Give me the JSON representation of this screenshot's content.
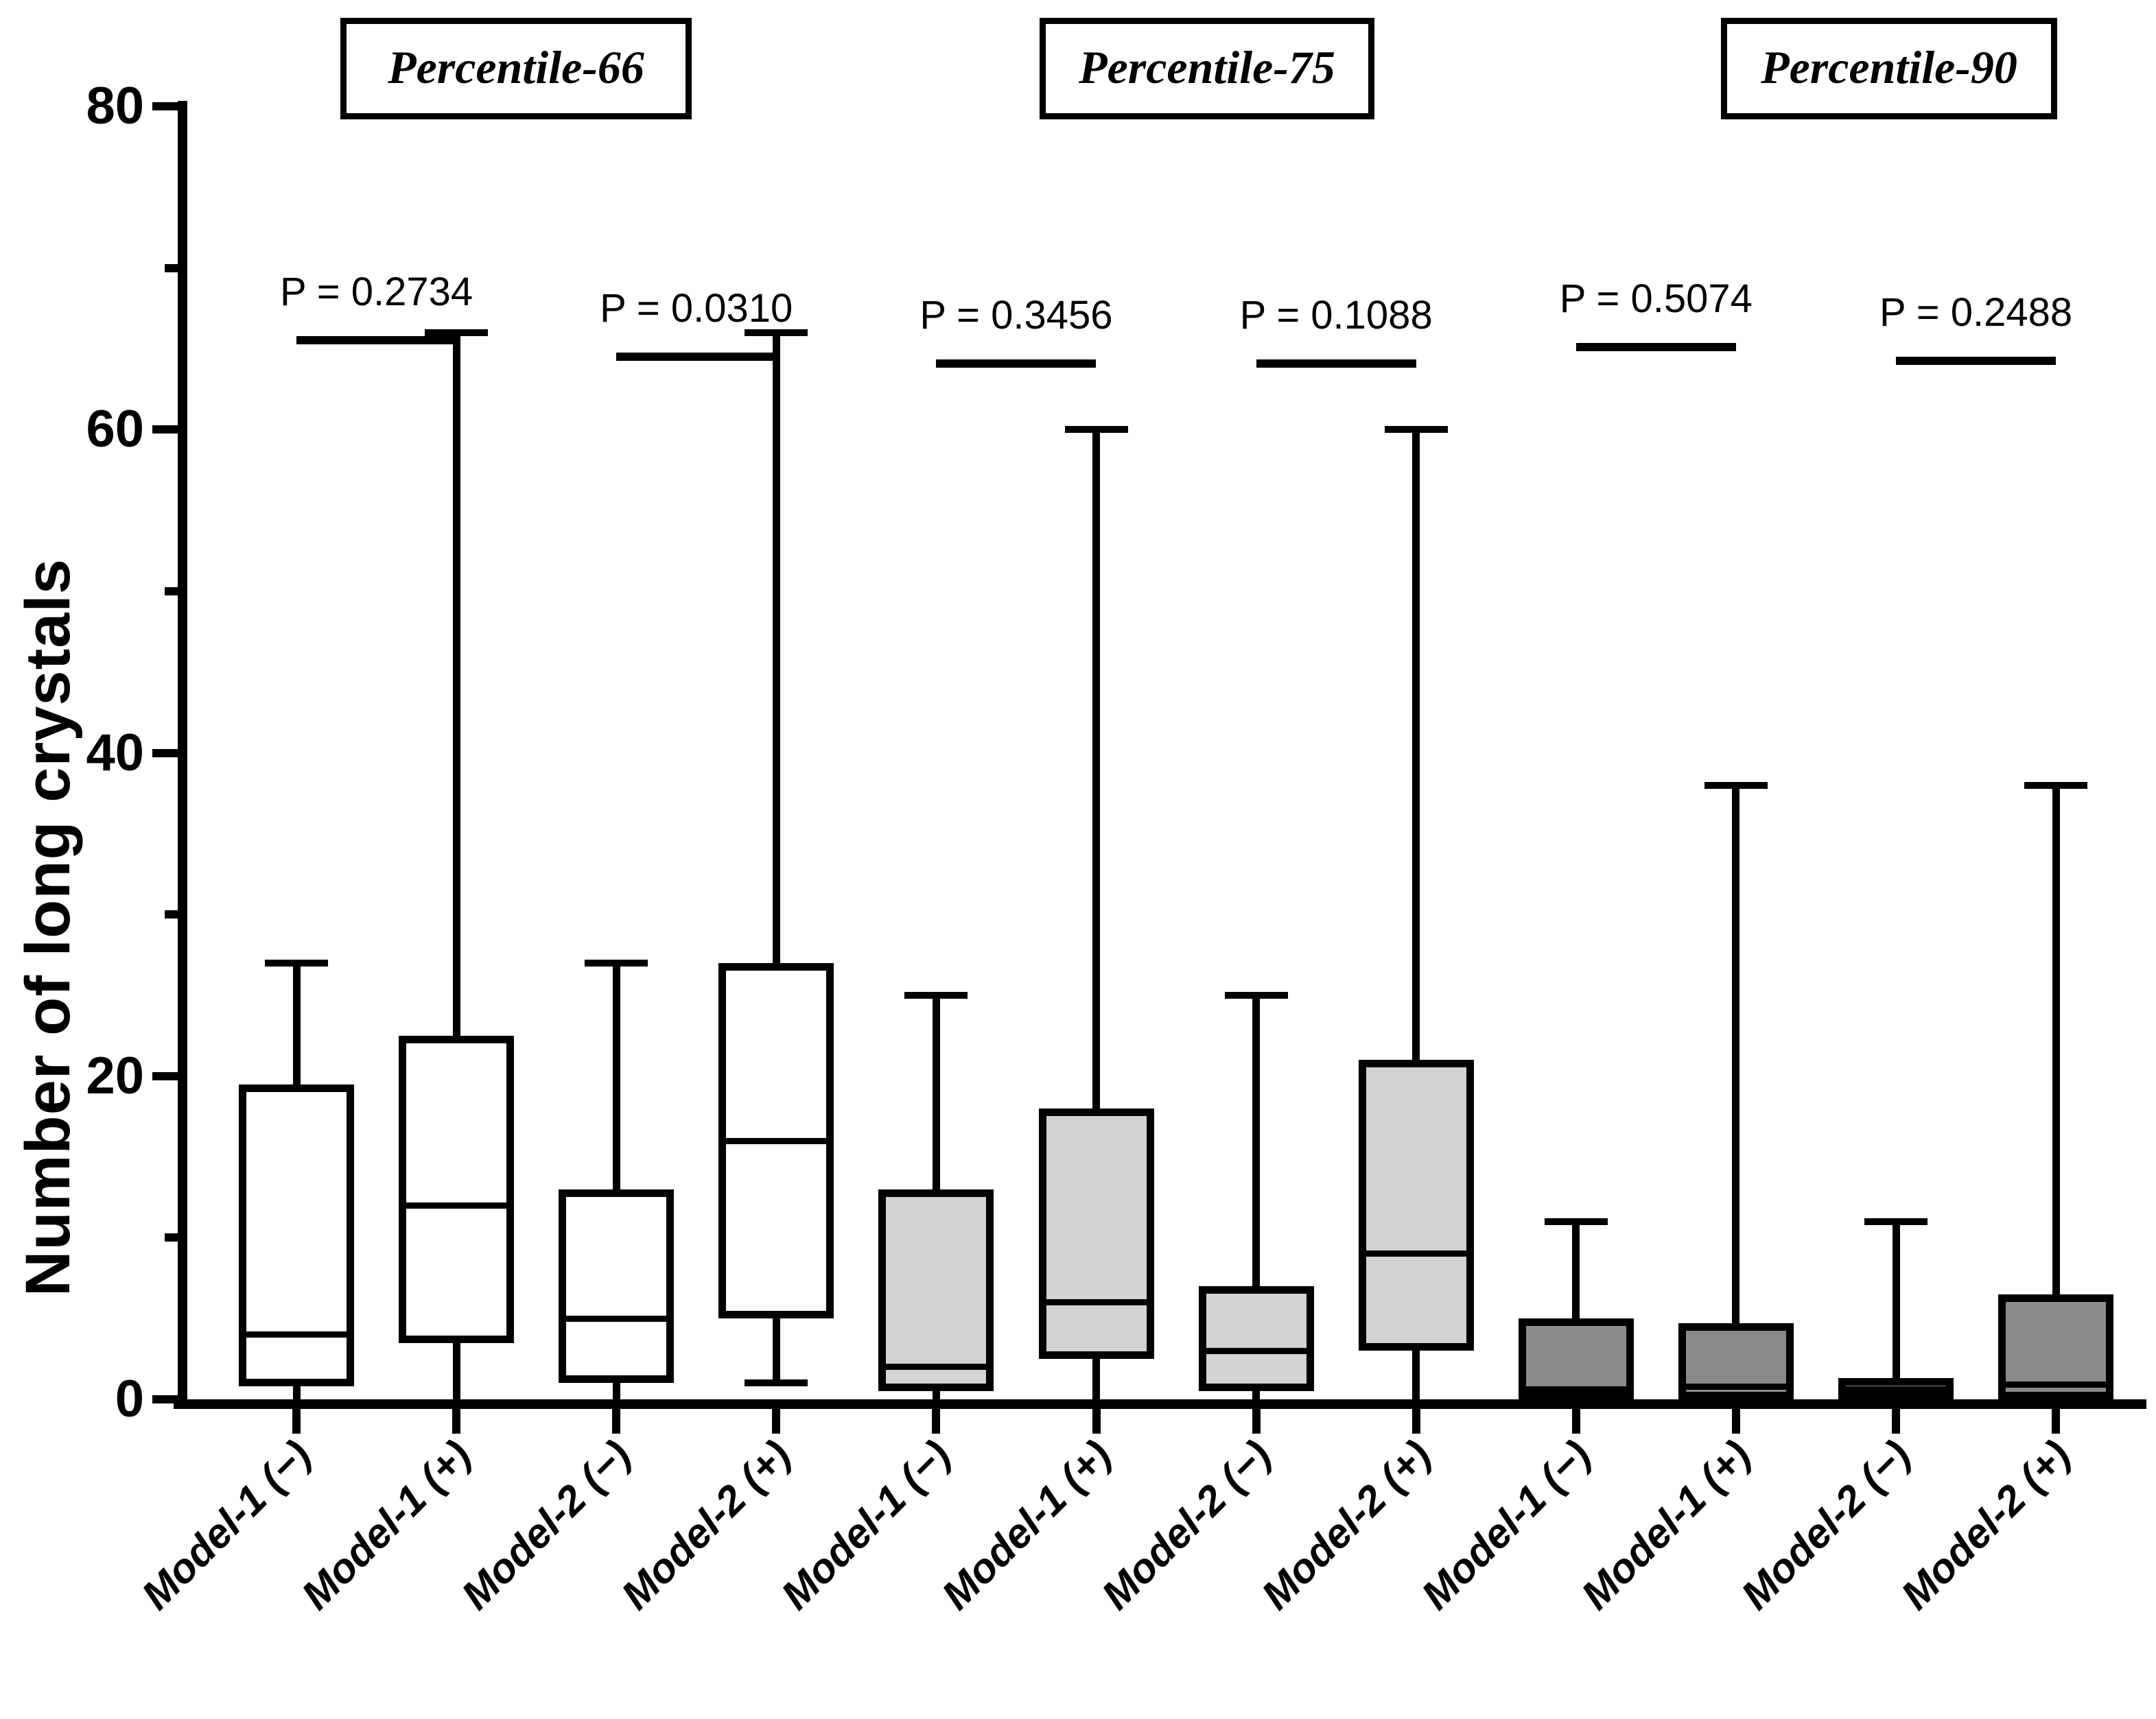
{
  "chart_data": {
    "type": "box",
    "title": "",
    "ylabel": "Number of long crystals",
    "xlabel": "",
    "ylim": [
      0,
      80
    ],
    "ytick_major": [
      0,
      20,
      40,
      60,
      80
    ],
    "ytick_minor": [
      10,
      30,
      50,
      70
    ],
    "grid": false,
    "legend_position": "none",
    "group_titles": [
      "Percentile-66",
      "Percentile-75",
      "Percentile-90"
    ],
    "group_fills": [
      "#ffffff",
      "#d3d3d3",
      "#8a8a8a"
    ],
    "categories": [
      "Model-1 (−)",
      "Model-1 (+)",
      "Model-2 (−)",
      "Model-2 (+)",
      "Model-1 (−)",
      "Model-1 (+)",
      "Model-2 (−)",
      "Model-2 (+)",
      "Model-1 (−)",
      "Model-1 (+)",
      "Model-2 (−)",
      "Model-2 (+)"
    ],
    "boxes": [
      {
        "label": "Model-1 (−)",
        "group": 0,
        "min": 0,
        "q1": 0.8,
        "median": 4,
        "q3": 19.5,
        "max": 27
      },
      {
        "label": "Model-1 (+)",
        "group": 0,
        "min": 0,
        "q1": 3.5,
        "median": 12,
        "q3": 22.5,
        "max": 66
      },
      {
        "label": "Model-2 (−)",
        "group": 0,
        "min": 0,
        "q1": 1,
        "median": 5,
        "q3": 13,
        "max": 27
      },
      {
        "label": "Model-2 (+)",
        "group": 0,
        "min": 1,
        "q1": 5,
        "median": 16,
        "q3": 27,
        "max": 66
      },
      {
        "label": "Model-1 (−)",
        "group": 1,
        "min": 0,
        "q1": 0.5,
        "median": 2,
        "q3": 13,
        "max": 25
      },
      {
        "label": "Model-1 (+)",
        "group": 1,
        "min": 0,
        "q1": 2.5,
        "median": 6,
        "q3": 18,
        "max": 60
      },
      {
        "label": "Model-2 (−)",
        "group": 1,
        "min": 0,
        "q1": 0.5,
        "median": 3,
        "q3": 7,
        "max": 25
      },
      {
        "label": "Model-2 (+)",
        "group": 1,
        "min": 0,
        "q1": 3,
        "median": 9,
        "q3": 21,
        "max": 60
      },
      {
        "label": "Model-1 (−)",
        "group": 2,
        "min": 0,
        "q1": 0,
        "median": 0.6,
        "q3": 5,
        "max": 11
      },
      {
        "label": "Model-1 (+)",
        "group": 2,
        "min": 0,
        "q1": 0,
        "median": 0.8,
        "q3": 4.7,
        "max": 38
      },
      {
        "label": "Model-2 (−)",
        "group": 2,
        "min": 0,
        "q1": 0,
        "median": 0.6,
        "q3": 1.3,
        "max": 11
      },
      {
        "label": "Model-2 (+)",
        "group": 2,
        "min": 0,
        "q1": 0,
        "median": 0.9,
        "q3": 6.5,
        "max": 38
      }
    ],
    "p_annotations": [
      {
        "label": "P = 0.2734",
        "left_box": 0,
        "right_box": 1
      },
      {
        "label": "P = 0.0310",
        "left_box": 2,
        "right_box": 3
      },
      {
        "label": "P = 0.3456",
        "left_box": 4,
        "right_box": 5
      },
      {
        "label": "P = 0.1088",
        "left_box": 6,
        "right_box": 7
      },
      {
        "label": "P = 0.5074",
        "left_box": 8,
        "right_box": 9
      },
      {
        "label": "P = 0.2488",
        "left_box": 10,
        "right_box": 11
      }
    ]
  }
}
